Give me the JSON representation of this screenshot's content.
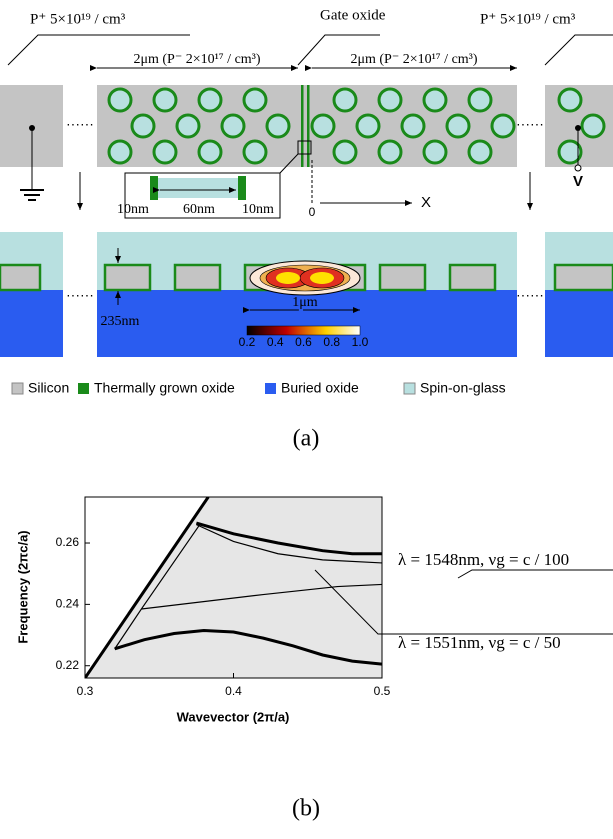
{
  "diagram": {
    "p_plus_left": "P⁺ 5×10¹⁹ / cm³",
    "gate_oxide": "Gate oxide",
    "p_plus_right": "P⁺ 5×10¹⁹ / cm³",
    "width_left": "2μm (P⁻ 2×10¹⁷ / cm³)",
    "width_right": "2μm (P⁻ 2×10¹⁷ / cm³)",
    "inset": [
      "10nm",
      "60nm",
      "10nm"
    ],
    "origin": "0",
    "x_axis": "X",
    "voltage": "V",
    "thickness": "235nm",
    "mode_width": "1μm",
    "colorbar_ticks": [
      "0.2",
      "0.4",
      "0.6",
      "0.8",
      "1.0"
    ],
    "legend": [
      "Silicon",
      "Thermally grown oxide",
      "Buried oxide",
      "Spin-on-glass"
    ],
    "caption": "(a)"
  },
  "chart_data": {
    "type": "line",
    "xlabel": "Wavevector (2π/a)",
    "ylabel": "Frequency (2πc/a)",
    "xlim": [
      0.3,
      0.5
    ],
    "ylim": [
      0.216,
      0.275
    ],
    "xticks": [
      0.3,
      0.4,
      0.5
    ],
    "yticks": [
      0.22,
      0.24,
      0.26
    ],
    "background": "#e6e6e6",
    "series": [
      {
        "color": "#000000",
        "linewidth": 3,
        "x": [
          0.3,
          0.383
        ],
        "values": [
          0.216,
          0.275
        ]
      },
      {
        "color": "#000000",
        "linewidth": 3,
        "x": [
          0.32,
          0.34,
          0.36,
          0.38,
          0.4,
          0.42,
          0.44,
          0.46,
          0.48,
          0.5
        ],
        "values": [
          0.2255,
          0.2285,
          0.2305,
          0.2315,
          0.231,
          0.229,
          0.2265,
          0.2235,
          0.2215,
          0.2205
        ]
      },
      {
        "color": "#000000",
        "linewidth": 1.2,
        "x": [
          0.32,
          0.338,
          0.378
        ],
        "values": [
          0.2255,
          0.2385,
          0.2665
        ]
      },
      {
        "color": "#000000",
        "linewidth": 1.2,
        "x": [
          0.338,
          0.42,
          0.47,
          0.5
        ],
        "values": [
          0.2385,
          0.2432,
          0.2458,
          0.2465
        ]
      },
      {
        "color": "#000000",
        "linewidth": 3,
        "x": [
          0.375,
          0.4,
          0.43,
          0.46,
          0.48,
          0.5
        ],
        "values": [
          0.2665,
          0.263,
          0.26,
          0.2575,
          0.2565,
          0.2565
        ]
      },
      {
        "color": "#000000",
        "linewidth": 1.2,
        "x": [
          0.375,
          0.4,
          0.43,
          0.46,
          0.5
        ],
        "values": [
          0.266,
          0.2605,
          0.2565,
          0.2545,
          0.2535
        ]
      }
    ],
    "annotations": [
      "λ = 1548nm, νg = c / 100",
      "λ = 1551nm, νg = c / 50"
    ],
    "caption": "(b)"
  }
}
